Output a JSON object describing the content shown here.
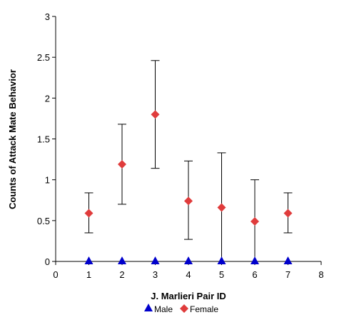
{
  "chart_data": {
    "type": "scatter",
    "xlabel": "J. Marlieri Pair ID",
    "ylabel": "Counts of Attack Mate Behavior",
    "xlim": [
      0,
      8
    ],
    "ylim": [
      0,
      3
    ],
    "x_ticks": [
      "0",
      "1",
      "2",
      "3",
      "4",
      "5",
      "6",
      "7",
      "8"
    ],
    "y_ticks": [
      "0",
      "0.5",
      "1",
      "1.5",
      "2",
      "2.5",
      "3"
    ],
    "grid": false,
    "legend_position": "bottom",
    "series": [
      {
        "name": "Male",
        "marker": "triangle",
        "color": "#0000cc",
        "points": [
          {
            "x": 1,
            "y": 0
          },
          {
            "x": 2,
            "y": 0
          },
          {
            "x": 3,
            "y": 0
          },
          {
            "x": 4,
            "y": 0
          },
          {
            "x": 5,
            "y": 0
          },
          {
            "x": 6,
            "y": 0
          },
          {
            "x": 7,
            "y": 0
          }
        ]
      },
      {
        "name": "Female",
        "marker": "diamond",
        "color": "#e03c3c",
        "points": [
          {
            "x": 1,
            "y": 0.59,
            "err_low": 0.35,
            "err_high": 0.84
          },
          {
            "x": 2,
            "y": 1.19,
            "err_low": 0.7,
            "err_high": 1.68
          },
          {
            "x": 3,
            "y": 1.8,
            "err_low": 1.14,
            "err_high": 2.46
          },
          {
            "x": 4,
            "y": 0.74,
            "err_low": 0.27,
            "err_high": 1.23
          },
          {
            "x": 5,
            "y": 0.66,
            "err_low": 0.0,
            "err_high": 1.33
          },
          {
            "x": 6,
            "y": 0.49,
            "err_low": 0.0,
            "err_high": 1.0
          },
          {
            "x": 7,
            "y": 0.59,
            "err_low": 0.35,
            "err_high": 0.84
          }
        ]
      }
    ]
  }
}
